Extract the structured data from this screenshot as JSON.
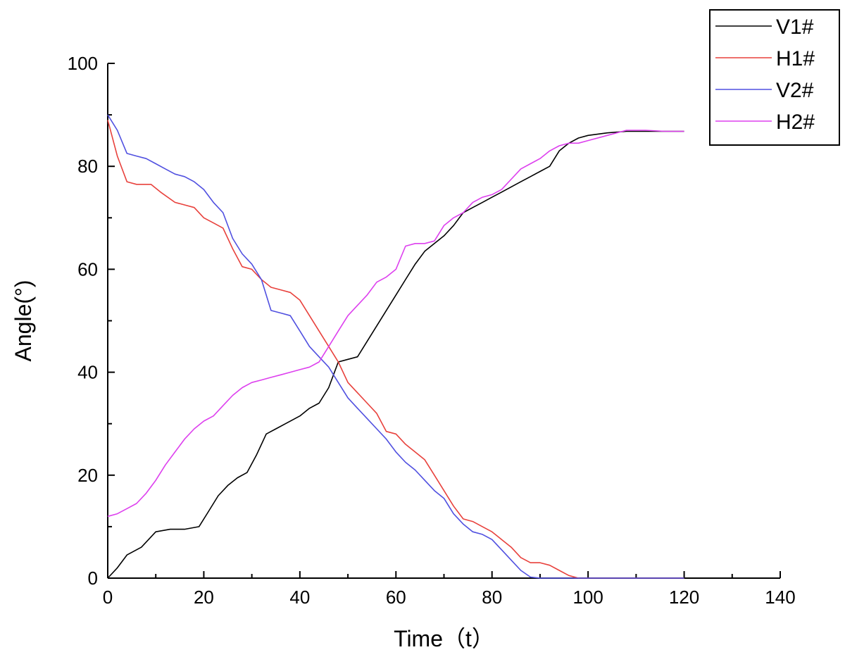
{
  "chart_data": {
    "type": "line",
    "title": "",
    "xlabel": "Time（t）",
    "ylabel": "Angle(°)",
    "xlim": [
      0,
      140
    ],
    "ylim": [
      0,
      100
    ],
    "xticks": [
      0,
      20,
      40,
      60,
      80,
      100,
      120,
      140
    ],
    "yticks": [
      0,
      20,
      40,
      60,
      80,
      100
    ],
    "grid": false,
    "legend": "top-right",
    "series": [
      {
        "name": "V1#",
        "color": "#000000",
        "x": [
          0,
          2,
          4,
          7,
          10,
          13,
          16,
          19,
          21,
          23,
          25,
          27,
          29,
          31,
          33,
          35,
          37,
          40,
          42,
          44,
          46,
          48,
          50,
          52,
          54,
          56,
          58,
          60,
          62,
          64,
          66,
          68,
          70,
          72,
          74,
          76,
          78,
          80,
          82,
          84,
          86,
          88,
          90,
          92,
          94,
          96,
          98,
          100,
          104,
          108,
          112,
          116,
          120
        ],
        "y": [
          0,
          2,
          4.5,
          6,
          9,
          9.5,
          9.5,
          10,
          13,
          16,
          18,
          19.5,
          20.5,
          24,
          28,
          29,
          30,
          31.5,
          33,
          34,
          37,
          42,
          42.5,
          43,
          46,
          49,
          52,
          55,
          58,
          61,
          63.5,
          65,
          66.5,
          68.5,
          71,
          72,
          73,
          74,
          75,
          76,
          77,
          78,
          79,
          80,
          83,
          84.5,
          85.5,
          86,
          86.5,
          86.8,
          86.8,
          86.8,
          86.8
        ]
      },
      {
        "name": "H1#",
        "color": "#e8413c",
        "x": [
          0,
          2,
          4,
          6,
          9,
          11,
          14,
          16,
          18,
          20,
          22,
          24,
          26,
          28,
          30,
          32,
          34,
          36,
          38,
          40,
          42,
          44,
          46,
          48,
          50,
          52,
          54,
          56,
          58,
          60,
          62,
          64,
          66,
          68,
          70,
          72,
          74,
          76,
          78,
          80,
          82,
          84,
          86,
          88,
          90,
          92,
          94,
          96,
          98,
          100,
          105,
          110,
          115,
          120
        ],
        "y": [
          89,
          82,
          77,
          76.5,
          76.5,
          75,
          73,
          72.5,
          72,
          70,
          69,
          68,
          64,
          60.5,
          60,
          58,
          56.5,
          56,
          55.5,
          54,
          51,
          48,
          45,
          42,
          38,
          36,
          34,
          32,
          28.5,
          28,
          26,
          24.5,
          23,
          20,
          17,
          14,
          11.5,
          11,
          10,
          9,
          7.5,
          6,
          4,
          3,
          3,
          2.5,
          1.5,
          0.5,
          0,
          0,
          0,
          0,
          0,
          0
        ]
      },
      {
        "name": "V2#",
        "color": "#5050e0",
        "x": [
          0,
          2,
          4,
          6,
          8,
          10,
          12,
          14,
          16,
          18,
          20,
          22,
          24,
          26,
          28,
          30,
          32,
          34,
          36,
          38,
          40,
          42,
          44,
          46,
          48,
          50,
          52,
          54,
          56,
          58,
          60,
          62,
          64,
          66,
          68,
          70,
          72,
          74,
          76,
          78,
          80,
          82,
          84,
          86,
          88,
          90,
          95,
          100,
          110,
          120
        ],
        "y": [
          90,
          87,
          82.5,
          82,
          81.5,
          80.5,
          79.5,
          78.5,
          78,
          77,
          75.5,
          73,
          71,
          66,
          63,
          61,
          58,
          52,
          51.5,
          51,
          48,
          45,
          43,
          41,
          38,
          35,
          33,
          31,
          29,
          27,
          24.5,
          22.5,
          21,
          19,
          17,
          15.5,
          12.5,
          10.5,
          9,
          8.5,
          7.5,
          5.5,
          3.5,
          1.5,
          0.2,
          0,
          0,
          0,
          0,
          0
        ]
      },
      {
        "name": "H2#",
        "color": "#dd40ee",
        "x": [
          0,
          2,
          4,
          6,
          8,
          10,
          12,
          14,
          16,
          18,
          20,
          22,
          24,
          26,
          28,
          30,
          32,
          34,
          36,
          38,
          40,
          42,
          44,
          46,
          48,
          50,
          52,
          54,
          56,
          58,
          60,
          62,
          64,
          66,
          68,
          70,
          72,
          74,
          76,
          78,
          80,
          82,
          84,
          86,
          88,
          90,
          92,
          94,
          96,
          98,
          100,
          104,
          108,
          112,
          116,
          120
        ],
        "y": [
          12,
          12.5,
          13.5,
          14.5,
          16.5,
          19,
          22,
          24.5,
          27,
          29,
          30.5,
          31.5,
          33.5,
          35.5,
          37,
          38,
          38.5,
          39,
          39.5,
          40,
          40.5,
          41,
          42,
          45,
          48,
          51,
          53,
          55,
          57.5,
          58.5,
          60,
          64.5,
          65,
          65,
          65.5,
          68.5,
          70,
          71,
          73,
          74,
          74.5,
          75.5,
          77.5,
          79.5,
          80.5,
          81.5,
          83,
          84,
          84.5,
          84.5,
          85,
          86,
          87,
          87,
          86.8,
          86.8
        ]
      }
    ]
  }
}
